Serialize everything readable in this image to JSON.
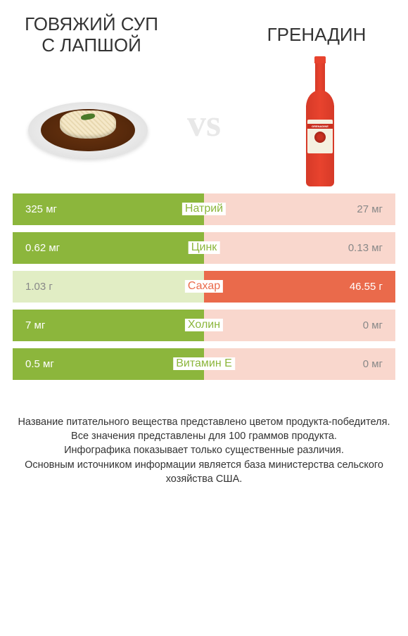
{
  "colors": {
    "left": "#8cb63c",
    "right": "#ea6a4b",
    "left_faded": "#e1edc4",
    "right_faded": "#f9d7cd"
  },
  "left_product": {
    "title": "ГОВЯЖИЙ СУП С ЛАПШОЙ"
  },
  "right_product": {
    "title": "ГРЕНАДИН",
    "label_text": "GRENADINE"
  },
  "vs_label": "vs",
  "rows": [
    {
      "nutrient": "Натрий",
      "left": "325 мг",
      "right": "27 мг",
      "winner": "left"
    },
    {
      "nutrient": "Цинк",
      "left": "0.62 мг",
      "right": "0.13 мг",
      "winner": "left"
    },
    {
      "nutrient": "Сахар",
      "left": "1.03 г",
      "right": "46.55 г",
      "winner": "right"
    },
    {
      "nutrient": "Холин",
      "left": "7 мг",
      "right": "0 мг",
      "winner": "left"
    },
    {
      "nutrient": "Витамин E",
      "left": "0.5 мг",
      "right": "0 мг",
      "winner": "left"
    }
  ],
  "footer": {
    "l1": "Название питательного вещества представлено цветом продукта-победителя.",
    "l2": "Все значения представлены для 100 граммов продукта.",
    "l3": "Инфографика показывает только существенные различия.",
    "l4": "Основным источником информации является база министерства сельского хозяйства США."
  }
}
